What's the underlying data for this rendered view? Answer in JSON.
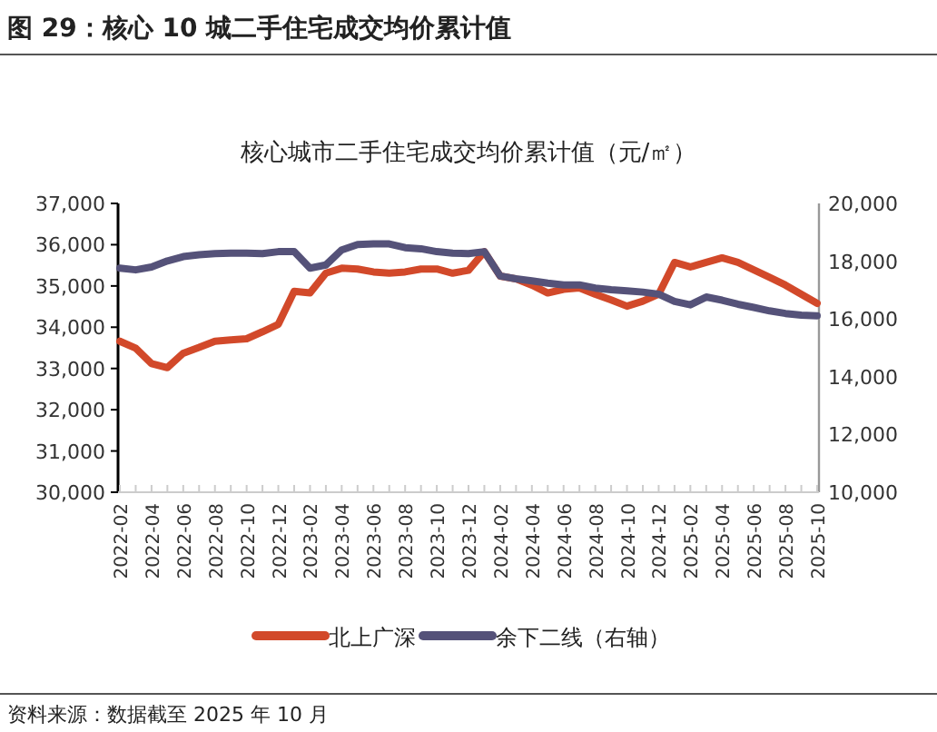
{
  "chart_data": {
    "type": "line",
    "title": "图 29：核心 10 城二手住宅成交均价累计值",
    "subtitle": "核心城市二手住宅成交均价累计值（元/㎡）",
    "annotations": [
      "资料来源：数据截至 2025 年 10 月"
    ],
    "categories": [
      "2022-02",
      null,
      "2022-04",
      null,
      "2022-06",
      null,
      "2022-08",
      null,
      "2022-10",
      null,
      "2022-12",
      null,
      "2023-02",
      null,
      "2023-04",
      null,
      "2023-06",
      null,
      "2023-08",
      null,
      "2023-10",
      null,
      "2023-12",
      null,
      "2024-02",
      null,
      "2024-04",
      null,
      "2024-06",
      null,
      "2024-08",
      null,
      "2024-10",
      null,
      "2024-12",
      null,
      "2025-02",
      null,
      "2025-04",
      null,
      "2025-06",
      null,
      "2025-08",
      null,
      "2025-10"
    ],
    "series": [
      {
        "name": "北上广深",
        "color": "#d2492a",
        "values": [
          33660,
          33490,
          33120,
          33020,
          33370,
          33510,
          33660,
          33690,
          33720,
          33890,
          34070,
          34870,
          34830,
          35310,
          35430,
          35410,
          35340,
          35310,
          35340,
          35410,
          35410,
          35310,
          35380,
          35830,
          35240,
          35170,
          35020,
          34830,
          34920,
          34950,
          34800,
          34660,
          34510,
          34630,
          34800,
          35570,
          35460,
          35570,
          35680,
          35570,
          35390,
          35210,
          35020,
          34800,
          34580
        ]
      },
      {
        "name": "余下二线（右轴）",
        "color": "#555279",
        "axis": "y2",
        "values": [
          17760,
          17700,
          17800,
          18010,
          18160,
          18220,
          18260,
          18280,
          18280,
          18260,
          18330,
          18330,
          17760,
          17870,
          18390,
          18580,
          18600,
          18600,
          18470,
          18430,
          18330,
          18280,
          18260,
          18330,
          17490,
          17390,
          17320,
          17240,
          17180,
          17180,
          17070,
          17010,
          16970,
          16930,
          16860,
          16610,
          16490,
          16760,
          16650,
          16510,
          16400,
          16280,
          16190,
          16130,
          16110
        ]
      }
    ],
    "ylim": [
      30000,
      37000
    ],
    "yticks": [
      {
        "value": 30000,
        "label": "30,000"
      },
      {
        "value": 31000,
        "label": "31,000"
      },
      {
        "value": 32000,
        "label": "32,000"
      },
      {
        "value": 33000,
        "label": "33,000"
      },
      {
        "value": 34000,
        "label": "34,000"
      },
      {
        "value": 35000,
        "label": "35,000"
      },
      {
        "value": 36000,
        "label": "36,000"
      },
      {
        "value": 37000,
        "label": "37,000"
      }
    ],
    "y2lim": [
      10000,
      20000
    ],
    "y2ticks": [
      {
        "value": 10000,
        "label": "10,000"
      },
      {
        "value": 12000,
        "label": "12,000"
      },
      {
        "value": 14000,
        "label": "14,000"
      },
      {
        "value": 16000,
        "label": "16,000"
      },
      {
        "value": 18000,
        "label": "18,000"
      },
      {
        "value": 20000,
        "label": "20,000"
      }
    ],
    "legend": "bottom",
    "grid": false
  }
}
